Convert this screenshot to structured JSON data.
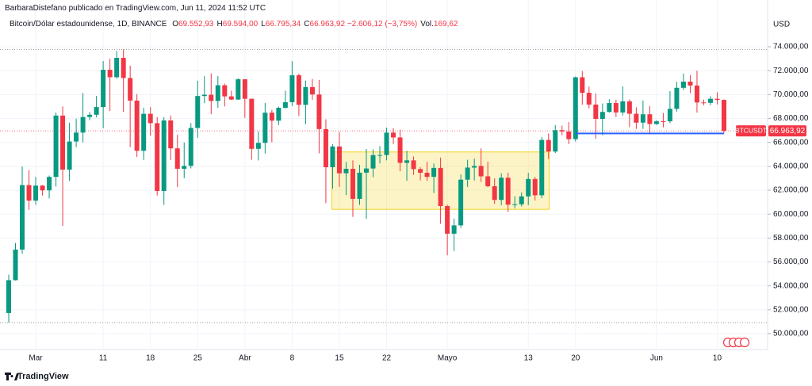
{
  "header": "BarbaraDistefano publicado en TradingView.com, Jun 11, 2024 11:52 UTC",
  "footer": "TradingView",
  "chart_data": {
    "type": "candlestick",
    "symbol": "Bitcoin/Dólar estadounidense, 1D, BINANCE",
    "legend": [
      {
        "key": "O",
        "text": "69.552,93"
      },
      {
        "key": "H",
        "text": "69.594,00"
      },
      {
        "key": "L",
        "text": "66.795,34"
      },
      {
        "key": "C",
        "text": "66.963,92"
      },
      {
        "key": "",
        "text": "−2.606,12 (−3,75%)"
      },
      {
        "key": "Vol.",
        "text": "169,62"
      }
    ],
    "currency": "USD",
    "last_price_label": "66.963,92",
    "symbol_tag": "BTCUSDT",
    "up_color": "#089981",
    "down_color": "#f23645",
    "grid": true,
    "categories": [
      null,
      null,
      null,
      null,
      "Mar",
      null,
      null,
      null,
      null,
      null,
      null,
      null,
      null,
      null,
      "11",
      null,
      null,
      null,
      null,
      null,
      null,
      "18",
      null,
      null,
      null,
      null,
      null,
      null,
      "25",
      null,
      null,
      null,
      null,
      null,
      null,
      "Abr",
      null,
      null,
      null,
      null,
      null,
      null,
      "8",
      null,
      null,
      null,
      null,
      null,
      null,
      "15",
      null,
      null,
      null,
      null,
      null,
      null,
      "22",
      null,
      null,
      null,
      null,
      null,
      null,
      null,
      null,
      "Mayo",
      null,
      null,
      null,
      null,
      null,
      null,
      null,
      null,
      null,
      null,
      null,
      "13",
      null,
      null,
      null,
      null,
      null,
      null,
      "20",
      null,
      null,
      null,
      null,
      null,
      null,
      null,
      null,
      null,
      null,
      null,
      "Jun",
      null,
      null,
      null,
      null,
      null,
      null,
      null,
      null,
      "10",
      null
    ],
    "open": [
      51730,
      54477,
      57037,
      62432,
      61130,
      62387,
      61987,
      63113,
      68245,
      63724,
      66074,
      66823,
      68124,
      68313,
      68955,
      72078,
      71452,
      73072,
      71388,
      69499,
      65300,
      68393,
      67609,
      61937,
      67840,
      65501,
      63796,
      64037,
      67211,
      69880,
      69988,
      69469,
      70780,
      69850,
      69582,
      71280,
      69649,
      65463,
      65963,
      68487,
      67820,
      68896,
      69360,
      71620,
      69146,
      70631,
      70006,
      67116,
      63924,
      65661,
      63419,
      63793,
      61277,
      63470,
      63818,
      64940,
      64941,
      66819,
      66414,
      64289,
      64498,
      63770,
      63461,
      63118,
      63866,
      60672,
      58364,
      59060,
      62882,
      63892,
      64031,
      63161,
      62334,
      61188,
      63049,
      60793,
      60825,
      61484,
      62940,
      61577,
      66206,
      65235,
      67024,
      66915,
      66274,
      71446,
      70148,
      69166,
      67969,
      68549,
      69290,
      68507,
      69436,
      68398,
      67653,
      68352,
      67540,
      67766,
      67765,
      68809,
      70567,
      71082,
      70757,
      69342,
      69306,
      69648,
      69552.93
    ],
    "high": [
      54938,
      57588,
      64000,
      63676,
      63114,
      62433,
      63231,
      68499,
      69000,
      67641,
      67985,
      70136,
      68541,
      69887,
      72800,
      73000,
      73650,
      73777,
      72419,
      70043,
      68904,
      68956,
      68124,
      68100,
      68240,
      66650,
      65999,
      67622,
      71150,
      71561,
      71769,
      71552,
      70916,
      70321,
      71366,
      71288,
      69674,
      66903,
      69291,
      68725,
      69000,
      70326,
      72797,
      71758,
      71172,
      71305,
      71227,
      67932,
      65840,
      66867,
      64365,
      64499,
      64125,
      65450,
      65419,
      65695,
      67233,
      67199,
      67075,
      65297,
      64820,
      63923,
      64370,
      64228,
      64734,
      60780,
      59625,
      63320,
      64545,
      64646,
      65500,
      64390,
      62995,
      63421,
      63469,
      61490,
      61818,
      63450,
      63118,
      66444,
      66752,
      67451,
      67400,
      67700,
      71515,
      71979,
      70666,
      70096,
      69250,
      69610,
      69562,
      70687,
      69591,
      68935,
      69500,
      69044,
      67860,
      68460,
      70288,
      71063,
      71758,
      71625,
      71997,
      69582,
      69865,
      70195,
      69594
    ],
    "low": [
      50931,
      54450,
      56691,
      60364,
      60777,
      61561,
      61320,
      62300,
      59005,
      62779,
      65600,
      66000,
      67861,
      68094,
      67194,
      68620,
      71333,
      68555,
      65600,
      64780,
      64533,
      66566,
      61555,
      60775,
      64529,
      62260,
      63000,
      63825,
      66385,
      69280,
      68359,
      68903,
      69009,
      69540,
      69562,
      68062,
      64550,
      64493,
      65064,
      66011,
      67447,
      68824,
      69043,
      68210,
      67518,
      69567,
      65086,
      60919,
      62134,
      62274,
      61600,
      59768,
      60775,
      59600,
      63090,
      64237,
      64500,
      65864,
      63589,
      62794,
      63297,
      62824,
      62781,
      61765,
      59191,
      56552,
      56911,
      58848,
      62274,
      62822,
      62700,
      62250,
      60866,
      60750,
      60187,
      60492,
      60632,
      60750,
      61142,
      61330,
      64603,
      65107,
      66600,
      65857,
      66060,
      69162,
      68842,
      66312,
      66600,
      68500,
      68128,
      68250,
      67277,
      67124,
      67128,
      66670,
      67445,
      67257,
      67612,
      68567,
      70383,
      70119,
      68500,
      69119,
      69125,
      69172,
      66795.34
    ],
    "close": [
      54477,
      57037,
      62432,
      61130,
      62387,
      61987,
      63113,
      68245,
      63724,
      66074,
      66823,
      68124,
      68313,
      68955,
      72078,
      71452,
      73072,
      71388,
      69499,
      65300,
      68393,
      67609,
      61937,
      67840,
      65501,
      63796,
      64037,
      67211,
      69880,
      69988,
      69469,
      70780,
      69850,
      69582,
      71280,
      69649,
      65463,
      65963,
      68487,
      67820,
      68896,
      69360,
      71620,
      69146,
      70631,
      70006,
      67116,
      63924,
      65661,
      63419,
      63793,
      61277,
      63470,
      63818,
      64940,
      64941,
      66819,
      66414,
      64289,
      64498,
      63770,
      63461,
      63118,
      63866,
      60672,
      58364,
      59060,
      62882,
      63892,
      64031,
      63161,
      62334,
      61188,
      63049,
      60793,
      60825,
      61484,
      62940,
      61577,
      66206,
      65235,
      67024,
      66915,
      66274,
      71446,
      70148,
      69166,
      67969,
      68549,
      69290,
      68507,
      69436,
      68398,
      67653,
      68352,
      67540,
      67766,
      67765,
      68809,
      70567,
      71082,
      70757,
      69342,
      69306,
      69648,
      69552.93,
      66963.92
    ],
    "ylim": [
      48674,
      77912
    ],
    "yticks": [
      {
        "value": 74000,
        "label": "74.000,00"
      },
      {
        "value": 72000,
        "label": "72.000,00"
      },
      {
        "value": 70000,
        "label": "70.000,00"
      },
      {
        "value": 68000,
        "label": "68.000,00"
      },
      {
        "value": 66000,
        "label": "66.000,00"
      },
      {
        "value": 64000,
        "label": "64.000,00"
      },
      {
        "value": 62000,
        "label": "62.000,00"
      },
      {
        "value": 60000,
        "label": "60.000,00"
      },
      {
        "value": 58000,
        "label": "58.000,00"
      },
      {
        "value": 56000,
        "label": "56.000,00"
      },
      {
        "value": 54000,
        "label": "54.000,00"
      },
      {
        "value": 52000,
        "label": "52.000,00"
      },
      {
        "value": 50000,
        "label": "50.000,00"
      }
    ],
    "rectangle": {
      "top": 65200,
      "bottom": 60400,
      "color": "#f2d31b"
    },
    "hline": {
      "value": 66750,
      "color": "#2962ff"
    },
    "range_lines": [
      73777,
      50931
    ]
  }
}
